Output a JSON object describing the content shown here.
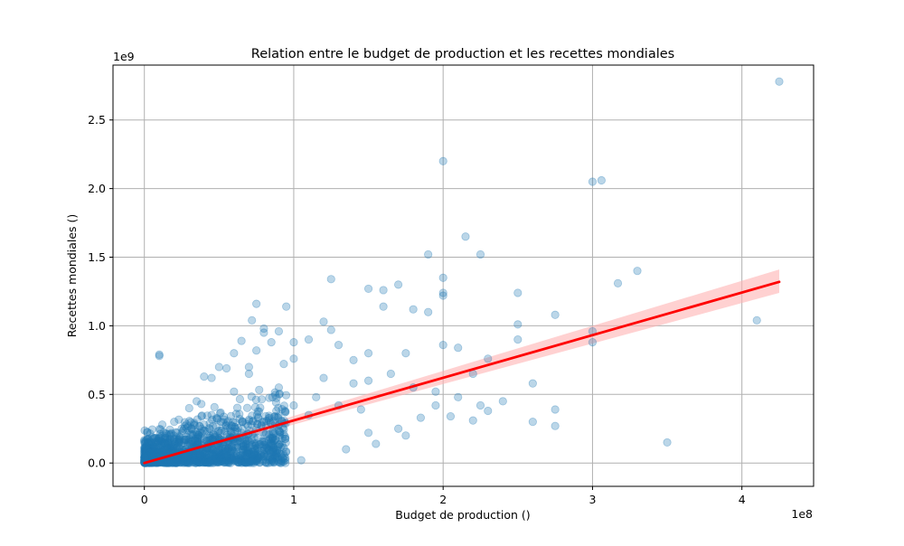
{
  "chart_data": {
    "type": "scatter",
    "title": "Relation entre le budget de production et les recettes mondiales",
    "xlabel": "Budget de production ()",
    "ylabel": "Recettes mondiales ()",
    "x_offset_label": "1e8",
    "y_offset_label": "1e9",
    "xlim": [
      -0.21,
      4.48
    ],
    "ylim": [
      -0.17,
      2.9
    ],
    "x_ticks": [
      0,
      1,
      2,
      3,
      4
    ],
    "x_tick_labels": [
      "0",
      "1",
      "2",
      "3",
      "4"
    ],
    "y_ticks": [
      0,
      0.5,
      1.0,
      1.5,
      2.0,
      2.5
    ],
    "y_tick_labels": [
      "0.0",
      "0.5",
      "1.0",
      "1.5",
      "2.0",
      "2.5"
    ],
    "grid": true,
    "point_color": "#1f77b4",
    "regression_color": "#ff0000",
    "band_color": "#ffb3b3",
    "regression_line": {
      "x": [
        0,
        4.25
      ],
      "y": [
        0,
        1.32
      ]
    },
    "confidence_band": {
      "x": [
        0,
        4.25
      ],
      "lower": [
        -0.015,
        1.24
      ],
      "upper": [
        0.015,
        1.41
      ]
    },
    "series": [
      {
        "x": [
          4.25,
          2.0,
          3.0,
          3.06,
          2.15,
          1.9,
          2.25,
          3.3,
          3.17,
          2.0,
          2.0,
          1.25,
          1.5,
          1.6,
          1.7,
          4.1,
          2.5,
          2.75,
          3.0,
          3.0,
          2.6,
          2.5,
          2.3,
          2.2,
          2.25,
          3.5,
          2.75,
          2.75,
          2.5,
          2.1,
          2.0,
          2.0,
          1.75,
          1.8,
          1.9,
          1.95,
          1.6,
          1.5,
          1.5,
          1.4,
          1.3,
          1.25,
          1.2,
          1.1,
          1.0,
          1.0,
          0.95,
          0.9,
          0.85,
          0.8,
          0.75,
          0.72,
          0.7,
          0.65,
          0.6,
          0.55,
          0.5,
          0.45,
          0.4,
          0.35,
          0.1,
          0.1,
          0.75,
          0.8,
          0.7,
          0.9,
          1.15,
          1.3,
          1.45,
          1.65,
          1.8,
          1.85,
          1.7,
          1.5,
          2.2,
          2.3,
          2.4,
          2.6,
          1.4,
          1.2,
          1.1,
          0.6,
          0.45,
          0.3,
          0.25,
          0.2,
          0.15,
          0.12,
          0.08,
          0.05,
          0.03,
          0.02,
          0.5,
          0.55,
          0.65,
          0.85,
          1.05,
          1.35,
          1.55,
          1.75,
          2.05,
          2.1,
          1.95,
          0.4,
          0.35,
          0.9,
          1.0,
          0.8
        ],
        "y": [
          2.78,
          2.2,
          2.05,
          2.06,
          1.65,
          1.52,
          1.52,
          1.4,
          1.31,
          1.35,
          1.24,
          1.34,
          1.27,
          1.26,
          1.3,
          1.04,
          1.24,
          1.08,
          0.96,
          0.88,
          0.58,
          0.9,
          0.76,
          0.65,
          0.42,
          0.15,
          0.39,
          0.27,
          1.01,
          0.84,
          1.22,
          0.86,
          0.8,
          1.12,
          1.1,
          0.42,
          1.14,
          0.8,
          0.6,
          0.75,
          0.86,
          0.97,
          1.03,
          0.9,
          0.88,
          0.76,
          1.14,
          0.96,
          0.88,
          0.98,
          1.16,
          1.04,
          0.7,
          0.89,
          0.8,
          0.69,
          0.7,
          0.62,
          0.63,
          0.45,
          0.79,
          0.78,
          0.82,
          0.95,
          0.65,
          0.55,
          0.48,
          0.42,
          0.39,
          0.65,
          0.55,
          0.33,
          0.25,
          0.22,
          0.31,
          0.38,
          0.45,
          0.3,
          0.58,
          0.62,
          0.35,
          0.52,
          0.35,
          0.4,
          0.25,
          0.3,
          0.21,
          0.28,
          0.18,
          0.15,
          0.1,
          0.06,
          0.18,
          0.05,
          0.12,
          0.08,
          0.02,
          0.1,
          0.14,
          0.2,
          0.34,
          0.48,
          0.52,
          0.07,
          0.02,
          0.28,
          0.42,
          0.3
        ]
      }
    ]
  }
}
